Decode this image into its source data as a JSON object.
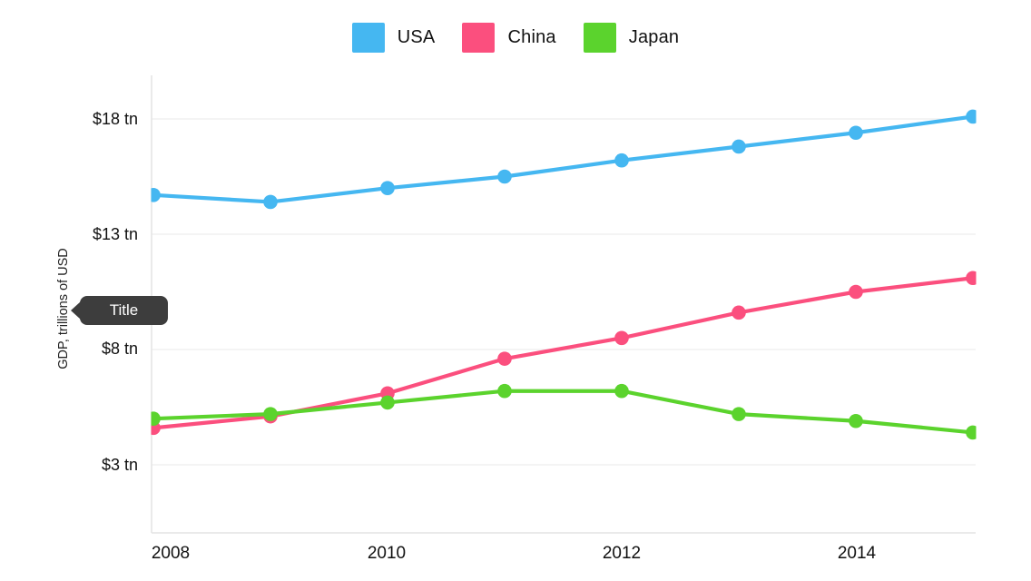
{
  "chart_data": {
    "type": "line",
    "x": [
      2008,
      2009,
      2010,
      2011,
      2012,
      2013,
      2014,
      2015
    ],
    "series": [
      {
        "name": "USA",
        "color": "#45B7F1",
        "values": [
          14.7,
          14.4,
          15.0,
          15.5,
          16.2,
          16.8,
          17.4,
          18.1
        ]
      },
      {
        "name": "China",
        "color": "#FB4F7E",
        "values": [
          4.6,
          5.1,
          6.1,
          7.6,
          8.5,
          9.6,
          10.5,
          11.1
        ]
      },
      {
        "name": "Japan",
        "color": "#5BD32D",
        "values": [
          5.0,
          5.2,
          5.7,
          6.2,
          6.2,
          5.2,
          4.9,
          4.4
        ]
      }
    ],
    "title": "",
    "xlabel": "",
    "ylabel": "GDP, trillions of USD",
    "yticks": [
      18,
      13,
      8,
      3
    ],
    "ytick_labels": [
      "$18 tn",
      "$13 tn",
      "$8 tn",
      "$3 tn"
    ],
    "xticks": [
      2008,
      2010,
      2012,
      2014
    ],
    "xtick_labels": [
      "2008",
      "2010",
      "2012",
      "2014"
    ],
    "ylim": [
      1.5,
      20
    ],
    "grid": "horizontal",
    "legend_position": "top",
    "grid_color": "#F0F0F0",
    "axis_color": "#E3E3E3",
    "units": "trillions of USD"
  },
  "tooltip": {
    "label": "Title",
    "bg_color": "#3D3D3D",
    "text_color": "#FFFFFF"
  }
}
